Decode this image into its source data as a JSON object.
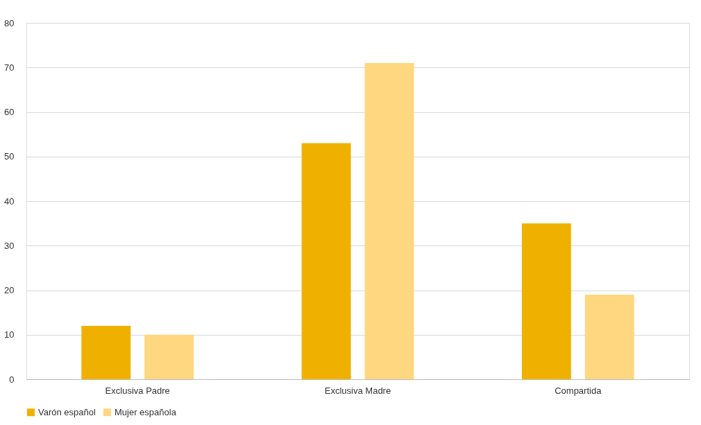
{
  "chart_data": {
    "type": "bar",
    "categories": [
      "Exclusiva Padre",
      "Exclusiva Madre",
      "Compartida"
    ],
    "series": [
      {
        "name": "Varón español",
        "color": "#f0b000",
        "values": [
          12,
          53,
          35
        ]
      },
      {
        "name": "Mujer española",
        "color": "#ffd780",
        "values": [
          10,
          71,
          19
        ]
      }
    ],
    "ylim": [
      0,
      80
    ],
    "yticks": [
      0,
      10,
      20,
      30,
      40,
      50,
      60,
      70,
      80
    ],
    "grid": "y",
    "legend": "bottom"
  }
}
